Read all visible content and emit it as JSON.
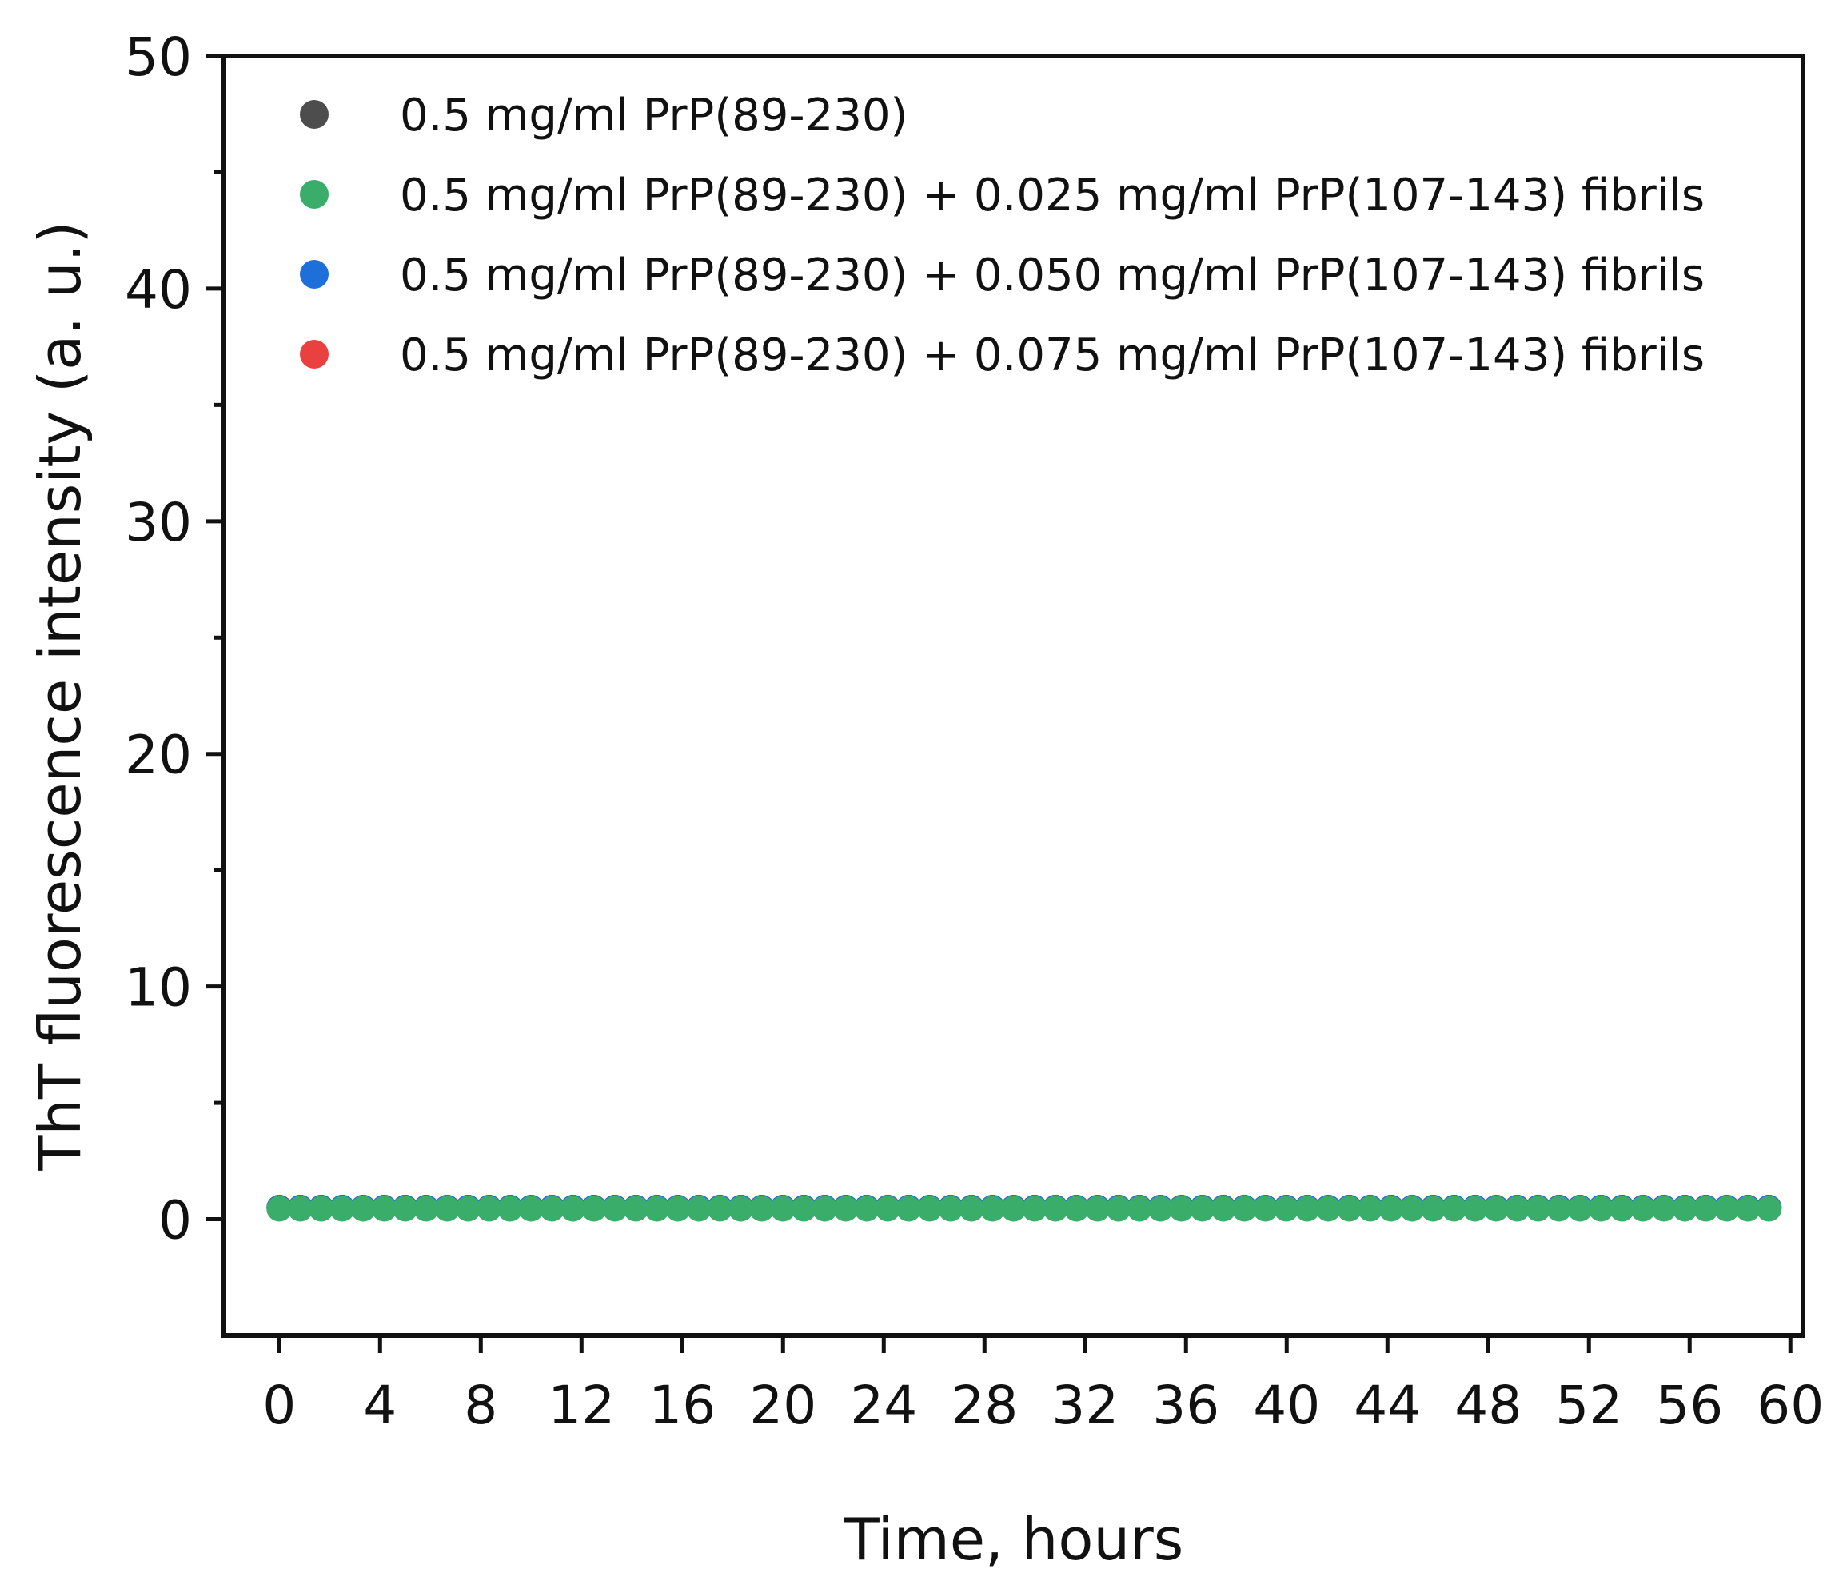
{
  "chart_data": {
    "type": "scatter",
    "xlabel": "Time, hours",
    "ylabel": "ThT fluorescence intensity (a. u.)",
    "xlim": [
      -2.2,
      60.5
    ],
    "ylim": [
      -5,
      50
    ],
    "xticks": [
      0,
      4,
      8,
      12,
      16,
      20,
      24,
      28,
      32,
      36,
      40,
      44,
      48,
      52,
      56,
      60
    ],
    "yticks": [
      0,
      10,
      20,
      30,
      40,
      50
    ],
    "yminor_ticks": [
      5,
      15,
      25,
      35,
      45
    ],
    "x_start": 0,
    "x_step": 0.833,
    "point_count": 72,
    "legend_position": "top-left",
    "series": [
      {
        "name": "0.5 mg/ml PrP(89-230)",
        "color": "#4d4d4d",
        "value": 0.5
      },
      {
        "name": "0.5 mg/ml PrP(89-230) + 0.025 mg/ml PrP(107-143) fibrils",
        "color": "#3aad6a",
        "value": 0.45
      },
      {
        "name": "0.5 mg/ml PrP(89-230) + 0.050 mg/ml PrP(107-143) fibrils",
        "color": "#1e6fd9",
        "value": 0.5
      },
      {
        "name": "0.5 mg/ml PrP(89-230) + 0.075 mg/ml PrP(107-143) fibrils",
        "color": "#ea4040",
        "value": 0.5
      }
    ],
    "draw_order": [
      0,
      3,
      2,
      1
    ]
  }
}
